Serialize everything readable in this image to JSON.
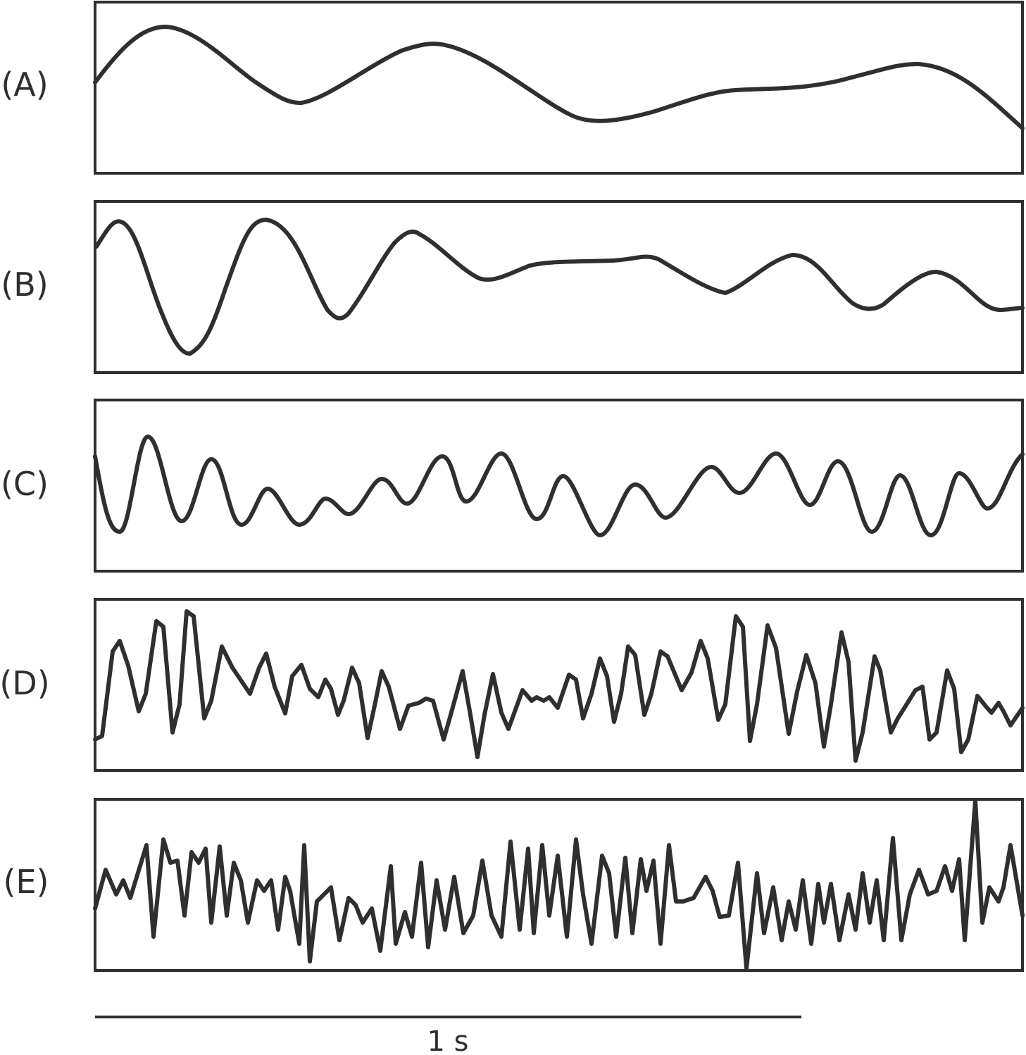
{
  "colors": {
    "ink": "#2f2f2f",
    "background": "#ffffff"
  },
  "panels": [
    {
      "label": "(A)"
    },
    {
      "label": "(B)"
    },
    {
      "label": "(C)"
    },
    {
      "label": "(D)"
    },
    {
      "label": "(E)"
    }
  ],
  "scale_bar": {
    "label": "1 s"
  }
}
